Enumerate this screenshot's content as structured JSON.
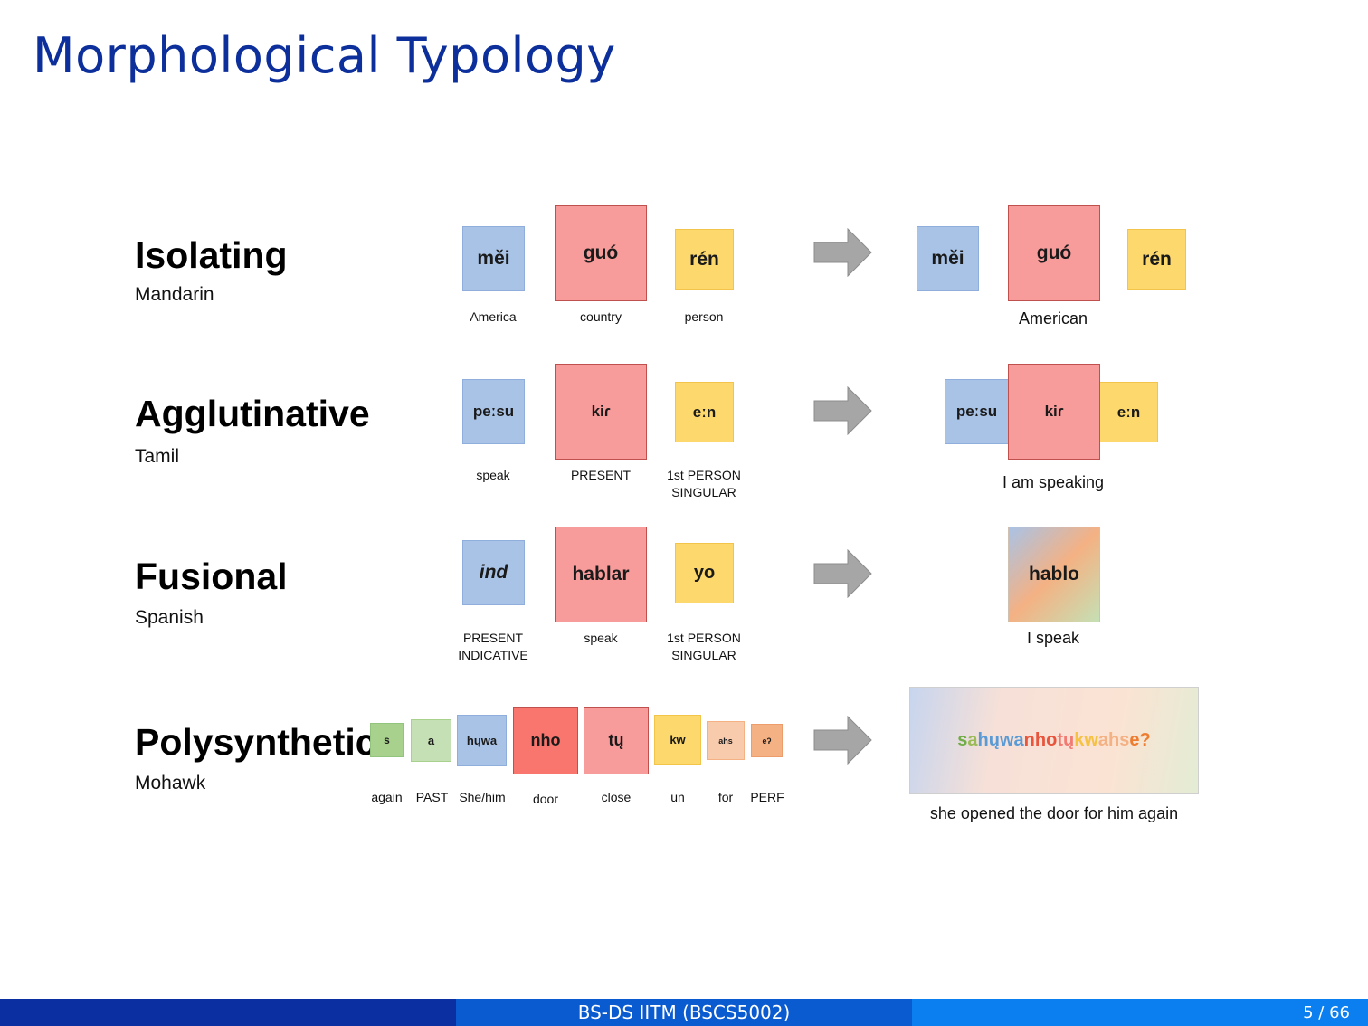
{
  "slide": {
    "title": "Morphological Typology"
  },
  "rows": {
    "isolating": {
      "name": "Isolating",
      "language": "Mandarin",
      "morphemes": [
        "měi",
        "guó",
        "rén"
      ],
      "glosses": [
        "America",
        "country",
        "person"
      ],
      "result": [
        "měi",
        "guó",
        "rén"
      ],
      "translation": "American"
    },
    "agglutinative": {
      "name": "Agglutinative",
      "language": "Tamil",
      "morphemes": [
        "peːsu",
        "kiɾ",
        "eːn"
      ],
      "glosses": [
        "speak",
        "PRESENT",
        "1st PERSON",
        "SINGULAR"
      ],
      "gloss_super": "st",
      "result": [
        "peːsu",
        "kiɾ",
        "eːn"
      ],
      "translation": "I am speaking"
    },
    "fusional": {
      "name": "Fusional",
      "language": "Spanish",
      "morphemes": [
        "ind",
        "hablar",
        "yo"
      ],
      "glosses": [
        "PRESENT",
        "INDICATIVE",
        "speak",
        "1st PERSON",
        "SINGULAR"
      ],
      "result": "hablo",
      "translation": "I speak"
    },
    "polysynthetic": {
      "name": "Polysynthetic",
      "language": "Mohawk",
      "morphemes": [
        "s",
        "a",
        "hųwa",
        "nho",
        "tų",
        "kw",
        "ahs",
        "eʔ"
      ],
      "glosses": [
        "again",
        "PAST",
        "She/him",
        "door",
        "close",
        "un",
        "for",
        "PERF"
      ],
      "result_parts": [
        "s",
        "a",
        "hųwa",
        "nho",
        "tų",
        "kw",
        "ahs",
        "e?"
      ],
      "translation": "she opened the door for him again"
    }
  },
  "colors": {
    "title": "#0c2f9b",
    "blue": "#a9c3e6",
    "red": "#f89b9b",
    "yellow": "#fdd86c",
    "green": "#a9d18e",
    "salmon": "#f8766d",
    "peach": "#f8cbad",
    "orange": "#f4b183",
    "arrow": "#a6a6a6"
  },
  "footer": {
    "center": "BS-DS IITM (BSCS5002)",
    "page": "5 / 66"
  }
}
